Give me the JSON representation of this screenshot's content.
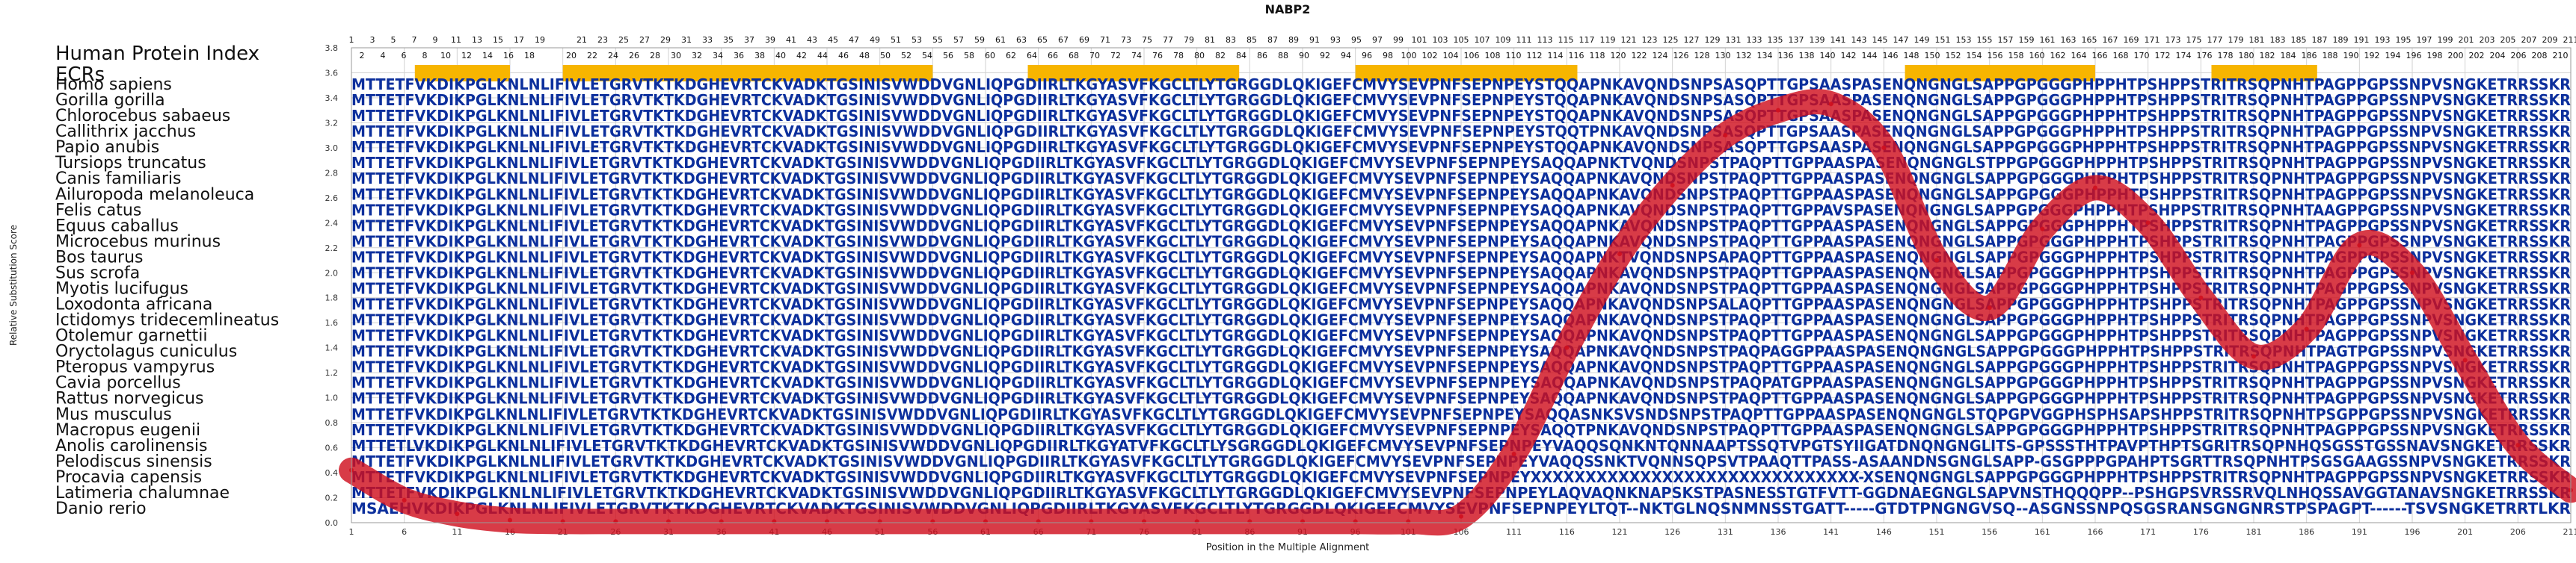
{
  "chart_data": {
    "type": "line",
    "title": "NABP2",
    "xlabel": "Position in the Multiple Alignment",
    "ylabel": "Relative Substitution Score",
    "ylim": [
      0.0,
      3.8
    ],
    "xlim": [
      1,
      211
    ],
    "yticks": [
      "0.0",
      "0.2",
      "0.4",
      "0.6",
      "0.8",
      "1.0",
      "1.2",
      "1.4",
      "1.6",
      "1.8",
      "2.0",
      "2.2",
      "2.4",
      "2.6",
      "2.8",
      "3.0",
      "3.2",
      "3.4",
      "3.6",
      "3.8"
    ],
    "xticks": [
      1,
      6,
      11,
      16,
      21,
      26,
      31,
      36,
      41,
      46,
      51,
      56,
      61,
      66,
      71,
      76,
      81,
      86,
      91,
      96,
      101,
      106,
      111,
      116,
      121,
      126,
      131,
      136,
      141,
      146,
      151,
      156,
      161,
      166,
      171,
      176,
      181,
      186,
      191,
      196,
      201,
      206,
      211
    ],
    "grid": true,
    "human_index_label": "Human Protein Index",
    "ecr_label": "ECRs",
    "ecr_color": "#f7b500",
    "ecr_regions": [
      [
        7,
        16
      ],
      [
        21,
        56
      ],
      [
        65,
        85
      ],
      [
        96,
        117
      ],
      [
        148,
        166
      ],
      [
        177,
        187
      ]
    ],
    "index_row_odd": [
      "1",
      "3",
      "5",
      "7",
      "9",
      "11",
      "13",
      "15",
      "17",
      "19",
      "",
      "21",
      "23",
      "25",
      "27",
      "29",
      "31",
      "33",
      "35",
      "37",
      "39",
      "41",
      "43",
      "45",
      "47",
      "49",
      "51",
      "53",
      "55",
      "57",
      "59",
      "61",
      "63",
      "65",
      "67",
      "69",
      "71",
      "73",
      "75",
      "77",
      "79",
      "81",
      "83",
      "85",
      "87",
      "89",
      "91",
      "93",
      "95",
      "97",
      "99",
      "101",
      "103",
      "105",
      "107",
      "109",
      "111",
      "113",
      "115",
      "117",
      "119",
      "121",
      "123",
      "125",
      "127",
      "129",
      "131",
      "133",
      "135",
      "137",
      "139",
      "141",
      "143",
      "145",
      "147",
      "149",
      "151",
      "153",
      "155",
      "157",
      "159",
      "161",
      "163",
      "165",
      "167",
      "169",
      "171",
      "173",
      "175",
      "177",
      "179",
      "181",
      "183",
      "185",
      "187",
      "189",
      "191",
      "193",
      "195",
      "197",
      "199",
      "201",
      "203",
      "205",
      "207",
      "209",
      "211"
    ],
    "index_row_even": [
      "2",
      "4",
      "6",
      "8",
      "10",
      "12",
      "14",
      "16",
      "18",
      "",
      "20",
      "22",
      "24",
      "26",
      "28",
      "30",
      "32",
      "34",
      "36",
      "38",
      "40",
      "42",
      "44",
      "46",
      "48",
      "50",
      "52",
      "54",
      "56",
      "58",
      "60",
      "62",
      "64",
      "66",
      "68",
      "70",
      "72",
      "74",
      "76",
      "78",
      "80",
      "82",
      "84",
      "86",
      "88",
      "90",
      "92",
      "94",
      "96",
      "98",
      "100",
      "102",
      "104",
      "106",
      "108",
      "110",
      "112",
      "114",
      "116",
      "118",
      "120",
      "122",
      "124",
      "126",
      "128",
      "130",
      "132",
      "134",
      "136",
      "138",
      "140",
      "142",
      "144",
      "146",
      "148",
      "150",
      "152",
      "154",
      "156",
      "158",
      "160",
      "162",
      "164",
      "166",
      "168",
      "170",
      "172",
      "174",
      "176",
      "178",
      "180",
      "182",
      "184",
      "186",
      "188",
      "190",
      "192",
      "194",
      "196",
      "198",
      "200",
      "202",
      "204",
      "206",
      "208",
      "210"
    ],
    "series": [
      {
        "color": "#d0101e",
        "x": [
          1,
          6,
          11,
          16,
          21,
          26,
          31,
          36,
          41,
          46,
          51,
          56,
          61,
          66,
          71,
          76,
          81,
          86,
          91,
          96,
          101,
          106,
          111,
          116,
          121,
          126,
          131,
          136,
          141,
          146,
          151,
          156,
          161,
          166,
          171,
          176,
          181,
          186,
          191,
          196,
          201,
          206,
          211
        ],
        "y": [
          0.42,
          0.18,
          0.07,
          0.02,
          0.01,
          0.01,
          0.01,
          0.01,
          0.01,
          0.01,
          0.01,
          0.01,
          0.01,
          0.01,
          0.01,
          0.01,
          0.01,
          0.01,
          0.01,
          0.01,
          0.01,
          0.05,
          0.55,
          1.4,
          2.15,
          2.7,
          3.1,
          3.3,
          3.35,
          3.0,
          2.1,
          1.72,
          2.35,
          2.68,
          2.4,
          1.8,
          1.33,
          1.55,
          2.22,
          2.0,
          1.3,
          0.62,
          0.26
        ]
      }
    ],
    "alignment_text_color": "#0c2f9c",
    "species": [
      {
        "name": "Homo sapiens",
        "seq": "MTTETFVKDIKPGLKNLNLIFIVLETGRVTKTKDGHEVRTCKVADKTGSINISVWDDVGNLIQPGDIIRLTKGYASVFKGCLTLYTGRGGDLQKIGEFCMVYSEVPNFSEPNPEYSTQQAPNKAVQNDSNPSASQPTTGPSAASPASENQNGNGLSAPPGPGGGPHPPHTPSHPPSTRITRSQPNHTPAGPPGPSSNPVSNGKETRRSSKR"
      },
      {
        "name": "Gorilla gorilla",
        "seq": "MTTETFVKDIKPGLKNLNLIFIVLETGRVTKTKDGHEVRTCKVADKTGSINISVWDDVGNLIQPGDIIRLTKGYASVFKGCLTLYTGRGGDLQKIGEFCMVYSEVPNFSEPNPEYSTQQAPNKAVQNDSNPSASQPTTGPSAASPASENQNGNGLSAPPGPGGGPHPPHTPSHPPSTRITRSQPNHTPAGPPGPSSNPVSNGKETRRSSKR"
      },
      {
        "name": "Chlorocebus sabaeus",
        "seq": "MTTETFVKDIKPGLKNLNLIFIVLETGRVTKTKDGHEVRTCKVADKTGSINISVWDDVGNLIQPGDIIRLTKGYASVFKGCLTLYTGRGGDLQKIGEFCMVYSEVPNFSEPNPEYSTQQAPNKAVQNDSNPSASQPTTGPSAASPASENQNGNGLSAPPGPGGGPHPPHTPSHPPSTRITRSQPNHTPAGPPGPSSNPVSNGKETRRSSKR"
      },
      {
        "name": "Callithrix jacchus",
        "seq": "MTTETFVKDIKPGLKNLNLIFIVLETGRVTKTKDGHEVRTCKVADKTGSINISVWDDVGNLIQPGDIIRLTKGYASVFKGCLTLYTGRGGDLQKIGEFCMVYSEVPNFSEPNPEYSTQQTPNKAVQNDSNPSASQPTTGPSAASPASENQNGNGLSAPPGPGGGPHPPHTPSHPPSTRITRSQPNHTPAGPPGPSSNPVSNGKETRRSSKR"
      },
      {
        "name": "Papio anubis",
        "seq": "MTTETFVKDIKPGLKNLNLIFIVLETGRVTKTKDGHEVRTCKVADKTGSINISVWDDVGNLIQPGDIIRLTKGYASVFKGCLTLYTGRGGDLQKIGEFCMVYSEVPNFSEPNPEYSTQQAPNKAVQNDSNPSASQPTTGPSAASPASENQNGNGLSAPPGPGGGPHPPHTPSHPPSTRITRSQPNHTPAGPPGPSSNPVSNGKETRRSSKR"
      },
      {
        "name": "Tursiops truncatus",
        "seq": "MTTETFVKDIKPGLKNLNLIFIVLETGRVTKTKDGHEVRTCKVADKTGSINISVWDDVGNLIQPGDIIRLTKGYASVFKGCLTLYTGRGGDLQKIGEFCMVYSEVPNFSEPNPEYSAQQAPNKTVQNDSNPSTPAQPTTGPPAASPASENQNGNGLSTPPGPGGGPHPPHTPSHPPSTRITRSQPNHTPAGPPGPSSNPVSNGKETRRSSKR"
      },
      {
        "name": "Canis familiaris",
        "seq": "MTTETFVKDIKPGLKNLNLIFIVLETGRVTKTKDGHEVRTCKVADKTGSINISVWDDVGNLIQPGDIIRLTKGYASVFKGCLTLYTGRGGDLQKIGEFCMVYSEVPNFSEPNPEYSAQQAPNKAVQNDSNPSTPAQPTTGPPAASPASENQNGNGLSAPPGPGGGPHPPHTPSHPPSTRITRSQPNHTPAGPPGPSSNPVSNGKETRRSSKR"
      },
      {
        "name": "Ailuropoda melanoleuca",
        "seq": "MTTETFVKDIKPGLKNLNLIFIVLETGRVTKTKDGHEVRTCKVADKTGSINISVWDDVGNLIQPGDIIRLTKGYASVFKGCLTLYTGRGGDLQKIGEFCMVYSEVPNFSEPNPEYSAQQAPNKAVQNDSNPSTPAQPTTGPPAASPASENQNGNGLSAPPGPGGGPHPPHTPSHPPSTRITRSQPNHTPAGPPGPSSNPVSNGKETRRSSKR"
      },
      {
        "name": "Felis catus",
        "seq": "MTTETFVKDIKPGLKNLNLIFIVLETGRVTKTKDGHEVRTCKVADKTGSINISVWDDVGNLIQPGDIIRLTKGYASVFKGCLTLYTGRGGDLQKIGEFCMVYSEVPNFSEPNPEYSAQQAPNKAVQNDSNPSTPAQPTTGPPAVSPASENQNGNGLSAPPGPGGGPHPPHTPSHPPSTRITRSQPNHTAAGPPGPSSNPVSNGKETRRSSKR"
      },
      {
        "name": "Equus caballus",
        "seq": "MTTETFVKDIKPGLKNLNLIFIVLETGRVTKTKDGHEVRTCKVADKTGSINISVWDDVGNLIQPGDIIRLTKGYASVFKGCLTLYTGRGGDLQKIGEFCMVYSEVPNFSEPNPEYSAQQAPNKAVQNDSNPSTPAQPTTGPPAASPASENQNGNGLSAPPGPGGGPHPPHTPSHPPSTRITRSQPNHTPAGPPGPSSNPVSNGKETRRSSKR"
      },
      {
        "name": "Microcebus murinus",
        "seq": "MTTETFVKDIKPGLKNLNLIFIVLETGRVTKTKDGHEVRTCKVADKTGSINISVWDDVGNLIQPGDIIRLTKGYASVFKGCLTLYTGRGGDLQKIGEFCMVYSEVPNFSEPNPEYSAQQAPNKAVQNDSNPSTPAQPTTGPPAASPASENQNGNGLSAPPGPGGGPHPPHTPSHPPSTRITRSQPNHTPAGPPGPSSNPVSNGKETRRSSKR"
      },
      {
        "name": "Bos taurus",
        "seq": "MTTETFVKDIKPGLKNLNLIFIVLETGRVTKTKDGHEVRTCKVADKTGSINISVWDDVGNLIQPGDIIRLTKGYASVFKGCLTLYTGRGGDLQKIGEFCMVYSEVPNFSEPNPEYSAQQAPNKTVQNDSNPSAPAQPTTGPPAASPASENQNGNGLSAPPGPGGGPHPPHTPSHPPSTRITRSQPNHTPAGPPGPSSNPVSNGKETRRSSKR"
      },
      {
        "name": "Sus scrofa",
        "seq": "MTTETFVKDIKPGLKNLNLIFIVLETGRVTKTKDGHEVRTCKVADKTGSINISVWDDVGNLIQPGDIIRLTKGYASVFKGCLTLYTGRGGDLQKIGEFCMVYSEVPNFSEPNPEYSAQQAPNKAVQNDSNPSTPAQPTTGPPAASPASENQNGNGLSAPPGPGGGPHPPHTPSHPPSTRITRSQPNHTPAGPPGPSSNPVSNGKETRRSSKR"
      },
      {
        "name": "Myotis lucifugus",
        "seq": "MTTETFVKDIKPGLKNLNLIFIVLETGRVTKTKDGHEVRTCKVADKTGSINISVWDDVGNLIQPGDIIRLTKGYASVFKGCLTLYTGRGGDLQKIGEFCMVYSEVPNFSEPNPEYSAQQAPNKAVQNDSNPSTPAQPTTGPPAASPASENQNGNGLSAPPGPGGGPHPPHTPSHPPSTRITRSQPNHTPAGPPGPSSNPVSNGKETRRSSKR"
      },
      {
        "name": "Loxodonta africana",
        "seq": "MTTETFVKDIKPGLKNLNLIFIVLETGRVTKTKDGHEVRTCKVADKTGSINISVWDDVGNLIQPGDIIRLTKGYASVFKGCLTLYTGRGGDLQKIGEFCMVYSEVPNFSEPNPEYSAQQAPNKAVQNDSNPSALAQPTTGPPAASPASENQNGNGLSAPPGPGGGPHPPHTPSHPPSTRITRSQPNHTPAGPPGPSSNPVSNGKETRRSSKR"
      },
      {
        "name": "Ictidomys tridecemlineatus",
        "seq": "MTTETFVKDIKPGLKNLNLIFIVLETGRVTKTKDGHEVRTCKVADKTGSINISVWDDVGNLIQPGDIIRLTKGYASVFKGCLTLYTGRGGDLQKIGEFCMVYSEVPNFSEPNPEYSAQQAPNKAVQNDSNPSTPAQPTTGPPAASPASENQNGNGLSAPPGPGGGPHPPHTPSHPPSTRITRSQPNHTPAGPPGPSSNPVSNGKETRRSSKR"
      },
      {
        "name": "Otolemur garnettii",
        "seq": "MTTETFVKDIKPGLKNLNLIFIVLETGRVTKTKDGHEVRTCKVADKTGSINISVWDDVGNLIQPGDIIRLTKGYASVFKGCLTLYTGRGGDLQKIGEFCMVYSEVPNFSEPNPEYSAQQAPNKAVQNDSNPSTPAQPTTGPPAASPASENQNGNGLSAPPGPGGGPHPPHTPSHPPSTRITRSQPNHTPAGPPGPSSNPVSNGKETRRSSKR"
      },
      {
        "name": "Oryctolagus cuniculus",
        "seq": "MTTETFVKDIKPGLKNLNLIFIVLETGRVTKTKDGHEVRTCKVADKTGSINISVWDDVGNLIQPGDIIRLTKGYASVFKGCLTLYTGRGGDLQKIGEFCMVYSEVPNFSEPNPEYSAQQAPNKAVQNDSNPSTPAQPAGGPPAASPASENQNGNGLSAPPGPGGGPHPPHTPSHPPSTRITRSQPNHTPAGTPGPSSNPVSNGKETRRSSKR"
      },
      {
        "name": "Pteropus vampyrus",
        "seq": "MTTETFVKDIKPGLKNLNLIFIVLETGRVTKTKDGHEVRTCKVADKTGSINISVWDDVGNLIQPGDIIRLTKGYASVFKGCLTLYTGRGGDLQKIGEFCMVYSEVPNFSEPNPEYSAQQAPNKAVQNDSNPSTPAQPTTGPPAASPASENQNGNGLSAPPGPGGGPHPPHTPSHPPSTRITRSQPNHTPAGPPGPSSNPVSNGKETRRSSKR"
      },
      {
        "name": "Cavia porcellus",
        "seq": "MTTETFVKDIKPGLKNLNLIFIVLETGRVTKTKDGHEVRTCKVADKTGSINISVWDDVGNLIQPGDIIRLTKGYASVFKGCLTLYTGRGGDLQKIGEFCMVYSEVPNFSEPNPEYSAQQAPNKAVQNDSNPSTPAQPATGPPAASPASENQNGNGLSAPPGPGGGPHPPHTPSHPPSTRITRSQPNHTPAGPPGPSSNPVSNGKETRRSSKR"
      },
      {
        "name": "Rattus norvegicus",
        "seq": "MTTETFVKDIKPGLKNLNLIFIVLETGRVTKTKDGHEVRTCKVADKTGSINISVWDDVGNLIQPGDIIRLTKGYASVFKGCLTLYTGRGGDLQKIGEFCMVYSEVPNFSEPNPEYSAQQAPNKAVQNDSNPSTPAQPTTGPPAASPASENQNGNGLSAPPGPGGGPHPPHTPSHPPSTRITRSQPNHTPAGPPGPSSNPVSNGKETRRSSKR"
      },
      {
        "name": "Mus musculus",
        "seq": "MTTETFVKDIKPGLKNLNLIFIVLETGRVTKTKDGHEVRTCKVADKTGSINISVWDDVGNLIQPGDIIRLTKGYASVFKGCLTLYTGRGGDLQKIGEFCMVYSEVPNFSEPNPEYSAQQASNKSVSNDSNPSTPAQPTTGPPAASPASENQNGNGLSTQPGPVGGPHSPHSAPSHPPSTRITRSQPNHTPSGPPGPSSNPVSNGKETRRSSKR"
      },
      {
        "name": "Macropus eugenii",
        "seq": "MTTETFVKDIKPGLKNLNLIFIVLETGRVTKTKDGHEVRTCKVADKTGSINISVWDDVGNLIQPGDIIRLTKGYASVFKGCLTLYTGRGGDLQKIGEFCMVYSEVPNFSEPNPEYSAQQTPNKAVQNDSNPSTPAQPTTGPPAASPASENQNGNGLSAPPGPGGGPHPPHTPSHPPSTRITRSQPNHTPAGPPGPSSNPVSNGKETRRSSKR"
      },
      {
        "name": "Anolis carolinensis",
        "seq": "MTTETLVKDIKPGLKNLNLIFIVLETGRVTKTKDGHEVRTCKVADKTGSINISVWDDVGNLIQPGDIIRLTKGYATVFKGCLTLYSGRGGDLQKIGEFCMVYSEVPNFSEPNPEYVAQQSQNKNTQNNAAPTSSQTVPGTSYIIGATDNQNGNGLITS-GPSSSTHTPAVPTHPTSGRITRSQPNHQSGSSTGSSNAVSNGKETRRSSKR"
      },
      {
        "name": "Pelodiscus sinensis",
        "seq": "MTTETFVKDIKPGLKNLNLIFIVLETGRVTKTKDGHEVRTCKVADKTGSINISVWDDVGNLIQPGDIIRLTKGYASVFKGCLTLYTGRGGDLQKIGEFCMVYSEVPNFSEPNPEYVAQQSSNKTVQNNSQPSVTPAAQTTPASS-ASAANDNSGNGLSAPP-GSGPPPGPAHPTSGRTTRSQPNHTPSGSGAAGSSNPVSNGKETRRSSKR"
      },
      {
        "name": "Procavia capensis",
        "seq": "MTTETFVKDIKPGLKNLNLIFIVLETGRVTKTKDGHEVRTCKVADKTGSINISVWDDVGNLIQPGDIIRLTKGYASVFKGCLTLYTGRGGDLQKIGEFCMVYSEVPNFSEPNPEYXXXXXXXXXXXXXXXXXXXXXXXXXXXXXX-XSENQNGNGLSAPPGPGGGPHPPHTPSHPPSTRITRSQPNHTPAGPPGPSSNPVSNGKETRRSSKR"
      },
      {
        "name": "Latimeria chalumnae",
        "seq": "MTTETFVKDIKPGLKNLNLIFIVLETGRVTKTKDGHEVRTCKVADKTGSINISVWDDVGNLIQPGDIIRLTKGYASVFKGCLTLYTGRGGDLQKIGEFCMVYSEVPNFSEPNPEYLAQVAQNKNAPSKSTPASNESSTGTFVTT-GGDNAEGNGLSAPVNSTHQQQPP--PSHGPSVRSSRVQLNHQSSAVGGTANAVSNGKETRRSSKR"
      },
      {
        "name": "Danio rerio",
        "seq": "MSAEHVKDIKPGLKNLNLIFIVLETGRVTKTKDGHEVRTCKVADKTGSINISVWDDVGNLIQPGDIIRLTKGYASVFKGCLTLYTGRGGDLQKIGEFCMVYSEVPNFSEPNPEYLTQT--NKTGLNQSNMNSSTGATT-----GTDTPNGNGVSQ--ASGNSSNPQSGSRANSGNGNRSTPSPAGPT------TSVSNGKETRRTLKR"
      }
    ]
  }
}
